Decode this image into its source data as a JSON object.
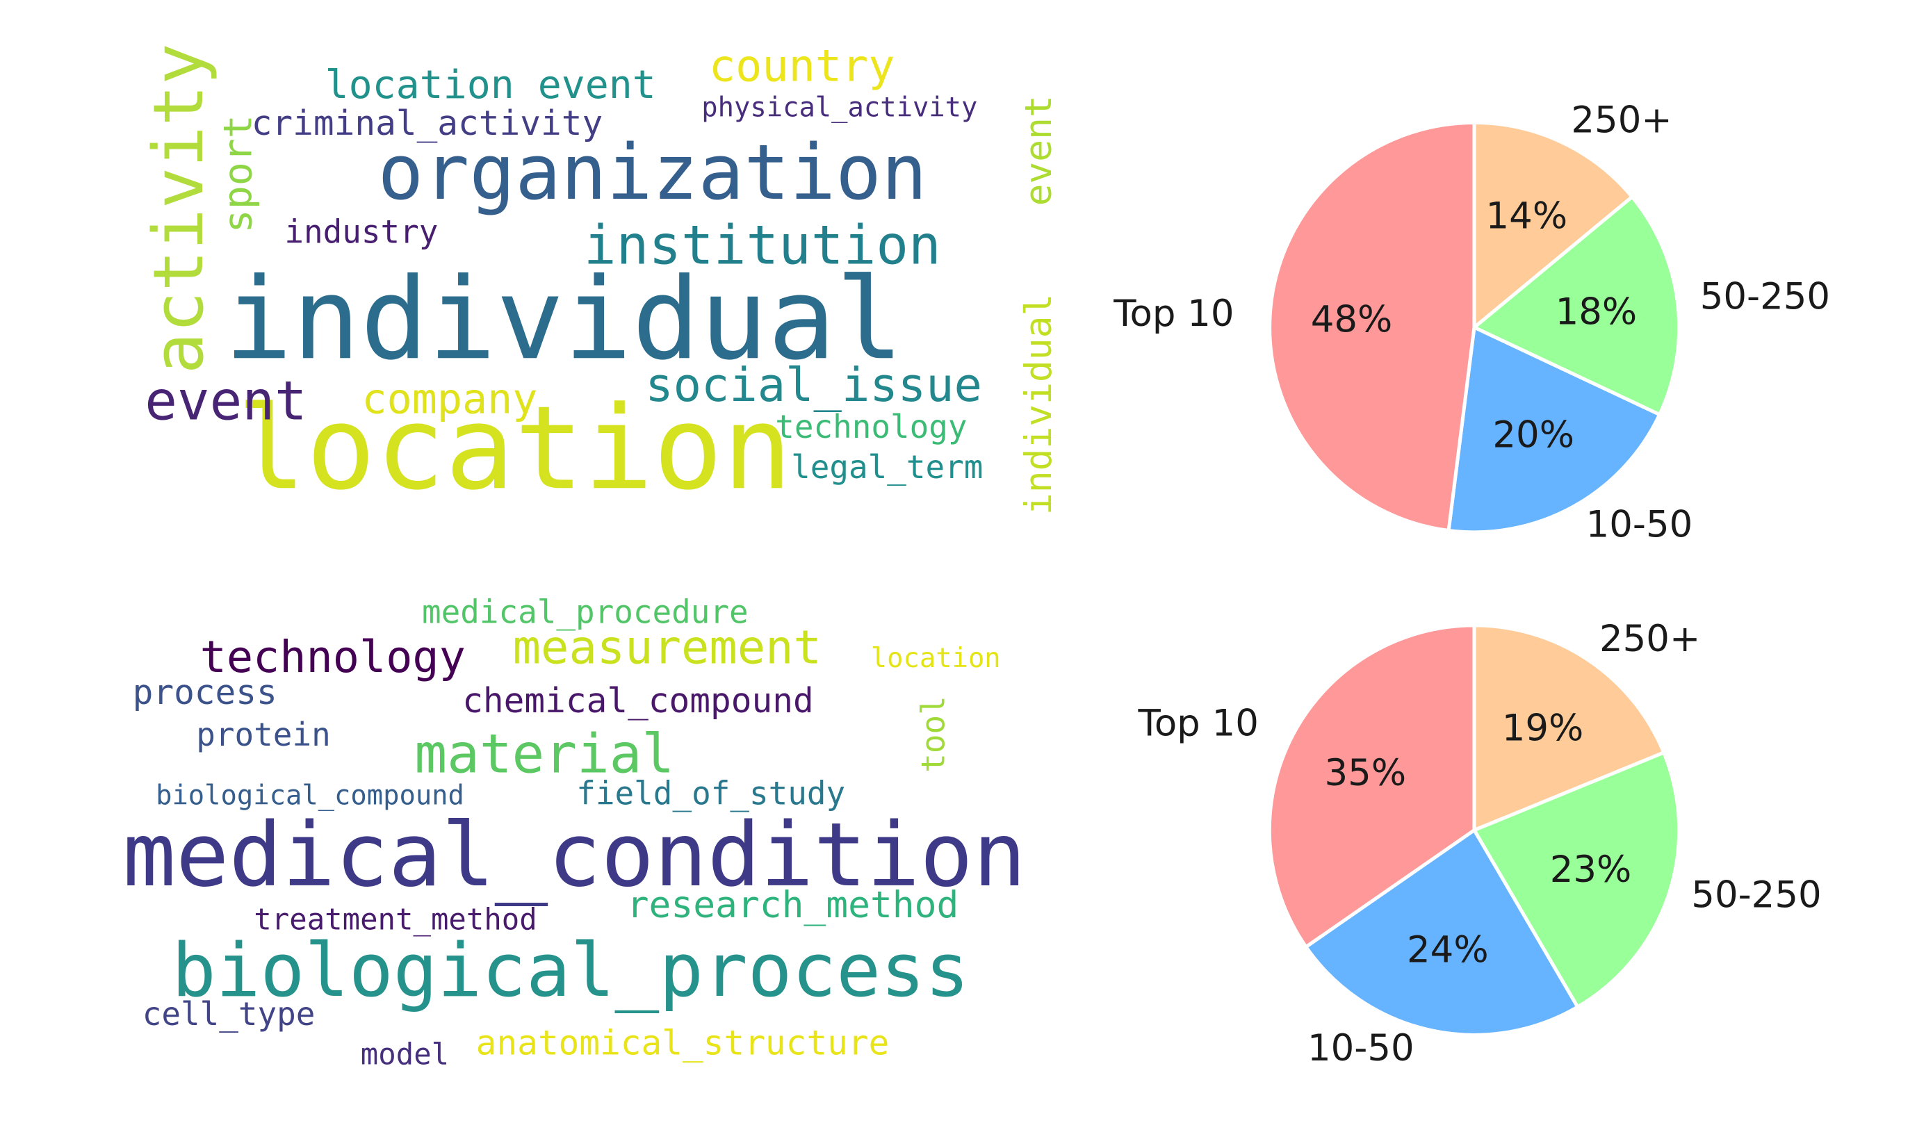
{
  "chart_data": [
    {
      "type": "wordcloud",
      "words": [
        {
          "text": "location",
          "color": "#d5e21f"
        },
        {
          "text": "individual",
          "color": "#2c6d8e"
        },
        {
          "text": "organization",
          "color": "#355f8d"
        },
        {
          "text": "activity",
          "color": "#b2dc3c"
        },
        {
          "text": "event",
          "color": "#482475"
        },
        {
          "text": "institution",
          "color": "#22808d"
        },
        {
          "text": "social_issue",
          "color": "#23888e"
        },
        {
          "text": "company",
          "color": "#e0e31b"
        },
        {
          "text": "country",
          "color": "#ede51b"
        },
        {
          "text": "location event",
          "color": "#21918c"
        },
        {
          "text": "criminal_activity",
          "color": "#433e85"
        },
        {
          "text": "physical_activity",
          "color": "#472d7b"
        },
        {
          "text": "sport",
          "color": "#8ed645"
        },
        {
          "text": "industry",
          "color": "#481f70"
        },
        {
          "text": "event",
          "color": "#addc30"
        },
        {
          "text": "individual",
          "color": "#c2df23"
        },
        {
          "text": "technology",
          "color": "#3bbb75"
        },
        {
          "text": "legal_term",
          "color": "#218f8d"
        }
      ]
    },
    {
      "type": "pie",
      "categories": [
        "Top 10",
        "250+",
        "50-250",
        "10-50"
      ],
      "values": [
        48,
        14,
        18,
        20
      ],
      "value_labels": [
        "48%",
        "14%",
        "18%",
        "20%"
      ],
      "colors": [
        "#ff9999",
        "#ffcc99",
        "#99ff99",
        "#66b3ff"
      ]
    },
    {
      "type": "wordcloud",
      "words": [
        {
          "text": "medical_condition",
          "color": "#3e3a87"
        },
        {
          "text": "biological_process",
          "color": "#26928c"
        },
        {
          "text": "material",
          "color": "#5cc863"
        },
        {
          "text": "measurement",
          "color": "#cae11f"
        },
        {
          "text": "technology",
          "color": "#440154"
        },
        {
          "text": "medical_procedure",
          "color": "#52c569"
        },
        {
          "text": "process",
          "color": "#3b528b"
        },
        {
          "text": "chemical_compound",
          "color": "#481769"
        },
        {
          "text": "protein",
          "color": "#3b528b"
        },
        {
          "text": "location",
          "color": "#e5e419"
        },
        {
          "text": "tool",
          "color": "#a0da39"
        },
        {
          "text": "biological_compound",
          "color": "#355e8d"
        },
        {
          "text": "field_of_study",
          "color": "#2a788e"
        },
        {
          "text": "research_method",
          "color": "#2eb37c"
        },
        {
          "text": "treatment_method",
          "color": "#481b6d"
        },
        {
          "text": "cell_type",
          "color": "#414487"
        },
        {
          "text": "model",
          "color": "#46307e"
        },
        {
          "text": "anatomical_structure",
          "color": "#e8e419"
        }
      ]
    },
    {
      "type": "pie",
      "categories": [
        "Top 10",
        "250+",
        "50-250",
        "10-50"
      ],
      "values": [
        35,
        19,
        23,
        24
      ],
      "value_labels": [
        "35%",
        "19%",
        "23%",
        "24%"
      ],
      "colors": [
        "#ff9999",
        "#ffcc99",
        "#99ff99",
        "#66b3ff"
      ]
    }
  ]
}
